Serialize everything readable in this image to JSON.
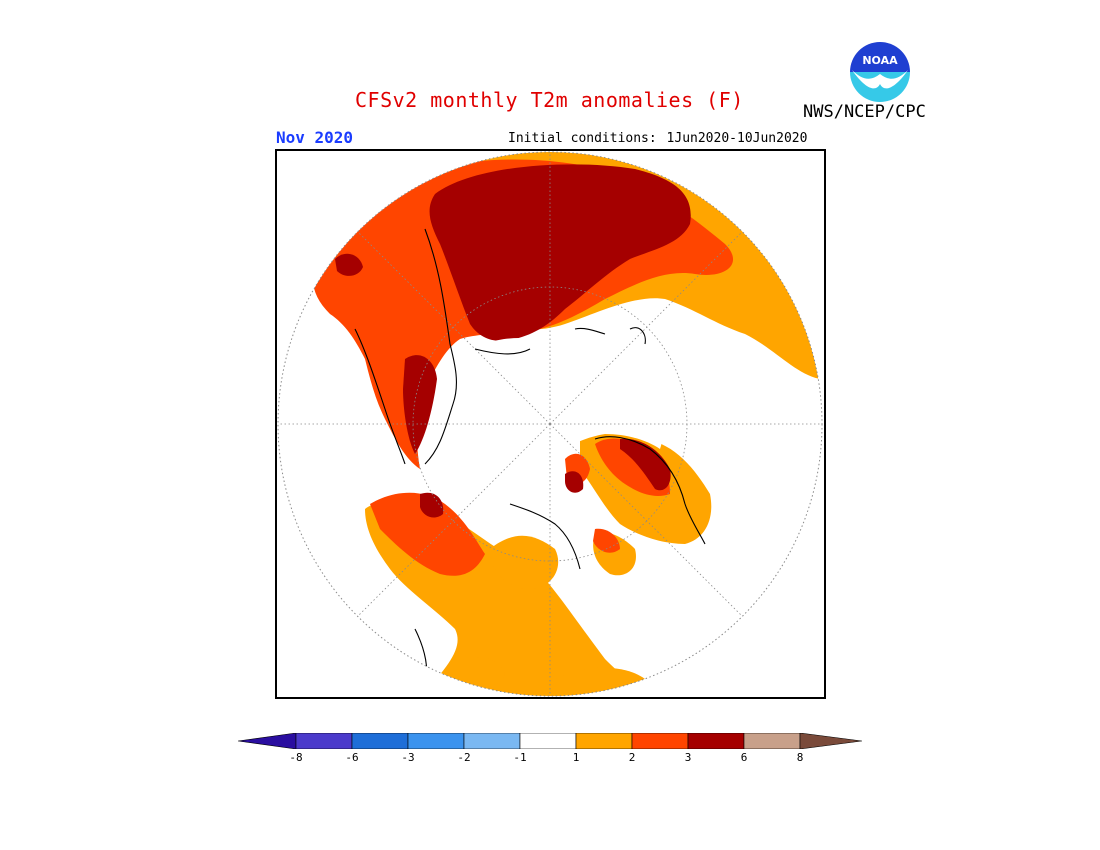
{
  "header": {
    "title": "CFSv2 monthly T2m anomalies (F)",
    "agency": "NWS/NCEP/CPC",
    "month": "Nov 2020",
    "initial_conditions_label": "Initial conditions:",
    "initial_conditions_range": "1Jun2020-10Jun2020"
  },
  "logo": {
    "text": "NOAA",
    "colors": {
      "top": "#1f3fd1",
      "bottom": "#36c9e8",
      "gull": "#ffffff"
    }
  },
  "legend": {
    "ticks": [
      "-8",
      "-6",
      "-3",
      "-2",
      "-1",
      "1",
      "2",
      "3",
      "6",
      "8"
    ],
    "colors": [
      "#2a0ea0",
      "#4b3acb",
      "#1e6ed8",
      "#3b93ee",
      "#7ab8f2",
      "#ffffff",
      "#ffa500",
      "#ff4500",
      "#a50000",
      "#c8a08a",
      "#7a4a3a"
    ]
  },
  "map": {
    "projection": "north polar stereographic",
    "colors": {
      "light_warm": "#ffa500",
      "warm": "#ff4500",
      "very_warm": "#a50000",
      "neutral": "#ffffff",
      "coast": "#000000",
      "grid": "#8a8a8a"
    }
  }
}
